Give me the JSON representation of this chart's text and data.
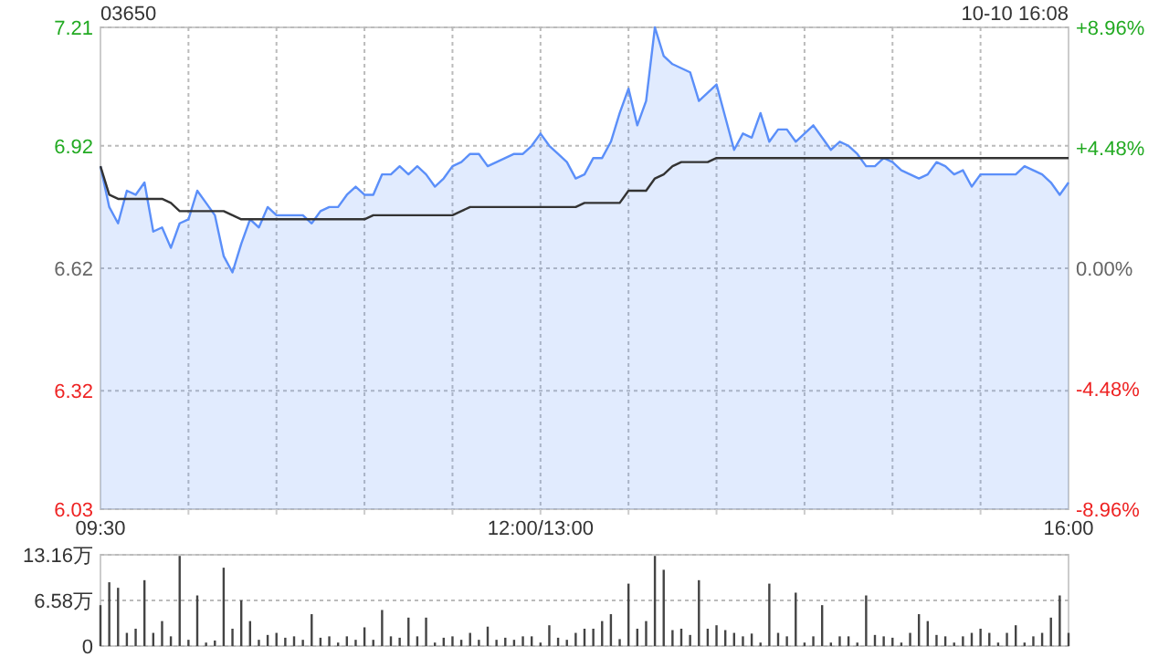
{
  "chart_data": [
    {
      "type": "line",
      "title": "03650",
      "annotations": [
        "10-10 16:08"
      ],
      "categories": [
        "09:30",
        null,
        null,
        null,
        null,
        null,
        null,
        null,
        null,
        null,
        null,
        null,
        null,
        null,
        null,
        null,
        null,
        null,
        null,
        null,
        null,
        null,
        null,
        null,
        null,
        null,
        null,
        null,
        null,
        null,
        null,
        null,
        null,
        null,
        null,
        null,
        null,
        null,
        null,
        null,
        null,
        null,
        null,
        null,
        null,
        null,
        null,
        null,
        null,
        null,
        "12:00/13:00",
        null,
        null,
        null,
        null,
        null,
        null,
        null,
        null,
        null,
        null,
        null,
        null,
        null,
        null,
        null,
        null,
        null,
        null,
        null,
        null,
        null,
        null,
        null,
        null,
        null,
        null,
        null,
        null,
        null,
        null,
        null,
        null,
        null,
        null,
        null,
        null,
        null,
        null,
        null,
        null,
        null,
        null,
        null,
        null,
        null,
        null,
        null,
        null,
        null,
        null,
        null,
        null,
        null,
        null,
        null,
        null,
        null,
        null,
        null,
        "16:00"
      ],
      "ylim": [
        6.03,
        7.21
      ],
      "yticks": [
        6.03,
        6.32,
        6.62,
        6.92,
        7.21
      ],
      "y2lim": [
        -8.96,
        8.96
      ],
      "y2ticks": [
        {
          "value": -8.96,
          "label": "-8.96%"
        },
        {
          "value": -4.48,
          "label": "-4.48%"
        },
        {
          "value": 0,
          "label": "0.00%"
        },
        {
          "value": 4.48,
          "label": "+4.48%"
        },
        {
          "value": 8.96,
          "label": "+8.96%"
        }
      ],
      "grid": true,
      "series": [
        {
          "type": "area",
          "color": "#5b8ff9",
          "values": [
            6.87,
            6.77,
            6.73,
            6.81,
            6.8,
            6.83,
            6.71,
            6.72,
            6.67,
            6.73,
            6.74,
            6.81,
            6.78,
            6.75,
            6.65,
            6.61,
            6.68,
            6.74,
            6.72,
            6.77,
            6.75,
            6.75,
            6.75,
            6.75,
            6.73,
            6.76,
            6.77,
            6.77,
            6.8,
            6.82,
            6.8,
            6.8,
            6.85,
            6.85,
            6.87,
            6.85,
            6.87,
            6.85,
            6.82,
            6.84,
            6.87,
            6.88,
            6.9,
            6.9,
            6.87,
            6.88,
            6.89,
            6.9,
            6.9,
            6.92,
            6.95,
            6.92,
            6.9,
            6.88,
            6.84,
            6.85,
            6.89,
            6.89,
            6.93,
            7.0,
            7.06,
            6.97,
            7.03,
            7.21,
            7.14,
            7.12,
            7.11,
            7.1,
            7.03,
            7.05,
            7.07,
            6.99,
            6.91,
            6.95,
            6.94,
            7.0,
            6.93,
            6.96,
            6.96,
            6.93,
            6.95,
            6.97,
            6.94,
            6.91,
            6.93,
            6.92,
            6.9,
            6.87,
            6.87,
            6.89,
            6.88,
            6.86,
            6.85,
            6.84,
            6.85,
            6.88,
            6.87,
            6.85,
            6.86,
            6.82,
            6.85,
            6.85,
            6.85,
            6.85,
            6.85,
            6.87,
            6.86,
            6.85,
            6.83,
            6.8,
            6.83
          ]
        },
        {
          "type": "line",
          "color": "#333333",
          "values": [
            6.87,
            6.8,
            6.79,
            6.79,
            6.79,
            6.79,
            6.79,
            6.79,
            6.78,
            6.76,
            6.76,
            6.76,
            6.76,
            6.76,
            6.76,
            6.75,
            6.74,
            6.74,
            6.74,
            6.74,
            6.74,
            6.74,
            6.74,
            6.74,
            6.74,
            6.74,
            6.74,
            6.74,
            6.74,
            6.74,
            6.74,
            6.75,
            6.75,
            6.75,
            6.75,
            6.75,
            6.75,
            6.75,
            6.75,
            6.75,
            6.75,
            6.76,
            6.77,
            6.77,
            6.77,
            6.77,
            6.77,
            6.77,
            6.77,
            6.77,
            6.77,
            6.77,
            6.77,
            6.77,
            6.77,
            6.78,
            6.78,
            6.78,
            6.78,
            6.78,
            6.81,
            6.81,
            6.81,
            6.84,
            6.85,
            6.87,
            6.88,
            6.88,
            6.88,
            6.88,
            6.89,
            6.89,
            6.89,
            6.89,
            6.89,
            6.89,
            6.89,
            6.89,
            6.89,
            6.89,
            6.89,
            6.89,
            6.89,
            6.89,
            6.89,
            6.89,
            6.89,
            6.89,
            6.89,
            6.89,
            6.89,
            6.89,
            6.89,
            6.89,
            6.89,
            6.89,
            6.89,
            6.89,
            6.89,
            6.89,
            6.89,
            6.89,
            6.89,
            6.89,
            6.89,
            6.89,
            6.89,
            6.89,
            6.89,
            6.89,
            6.89
          ]
        }
      ]
    },
    {
      "type": "bar",
      "categories": [
        null,
        null,
        null,
        null,
        null,
        null,
        null,
        null,
        null,
        null,
        null,
        null,
        null,
        null,
        null,
        null,
        null,
        null,
        null,
        null,
        null,
        null,
        null,
        null,
        null,
        null,
        null,
        null,
        null,
        null,
        null,
        null,
        null,
        null,
        null,
        null,
        null,
        null,
        null,
        null,
        null,
        null,
        null,
        null,
        null,
        null,
        null,
        null,
        null,
        null,
        null,
        null,
        null,
        null,
        null,
        null,
        null,
        null,
        null,
        null,
        null,
        null,
        null,
        null,
        null,
        null,
        null,
        null,
        null,
        null,
        null,
        null,
        null,
        null,
        null,
        null,
        null,
        null,
        null,
        null,
        null,
        null,
        null,
        null,
        null,
        null,
        null,
        null,
        null,
        null,
        null,
        null,
        null,
        null,
        null,
        null,
        null,
        null,
        null,
        null,
        null,
        null,
        null,
        null,
        null,
        null,
        null,
        null,
        null,
        null,
        null
      ],
      "ylim": [
        0,
        13.16
      ],
      "yticks": [
        0,
        {
          "value": 6.58,
          "label": "6.58万"
        },
        {
          "value": 13.16,
          "label": "13.16万"
        }
      ],
      "grid": "y",
      "tick_labels": "y",
      "color": "#444444",
      "values": [
        5.9,
        9.2,
        8.4,
        1.9,
        2.5,
        9.5,
        1.9,
        3.6,
        1.4,
        13.0,
        0.9,
        7.3,
        0.5,
        0.8,
        11.3,
        2.5,
        6.6,
        3.6,
        0.9,
        1.6,
        1.9,
        1.2,
        1.4,
        0.9,
        4.6,
        1.2,
        1.4,
        0.5,
        1.4,
        0.9,
        2.7,
        0.9,
        5.2,
        1.4,
        1.2,
        4.1,
        1.4,
        4.1,
        0.5,
        1.2,
        1.4,
        0.9,
        1.9,
        0.9,
        2.8,
        0.9,
        1.2,
        0.9,
        1.4,
        1.4,
        0.5,
        3.0,
        1.2,
        0.9,
        1.9,
        2.5,
        2.5,
        3.6,
        4.6,
        1.0,
        9.0,
        2.5,
        3.6,
        13.0,
        11.0,
        2.3,
        2.5,
        1.6,
        9.5,
        2.5,
        3.0,
        2.3,
        1.9,
        1.4,
        1.8,
        0.5,
        9.0,
        1.9,
        1.4,
        7.7,
        0.5,
        1.4,
        5.9,
        0.5,
        1.4,
        1.4,
        0.5,
        7.3,
        1.6,
        1.4,
        1.2,
        0.5,
        1.9,
        4.6,
        3.6,
        1.6,
        1.4,
        0.5,
        1.4,
        1.9,
        2.5,
        1.9,
        0.5,
        1.9,
        3.0,
        0.5,
        1.4,
        1.9,
        4.1,
        7.3,
        1.9
      ]
    }
  ]
}
